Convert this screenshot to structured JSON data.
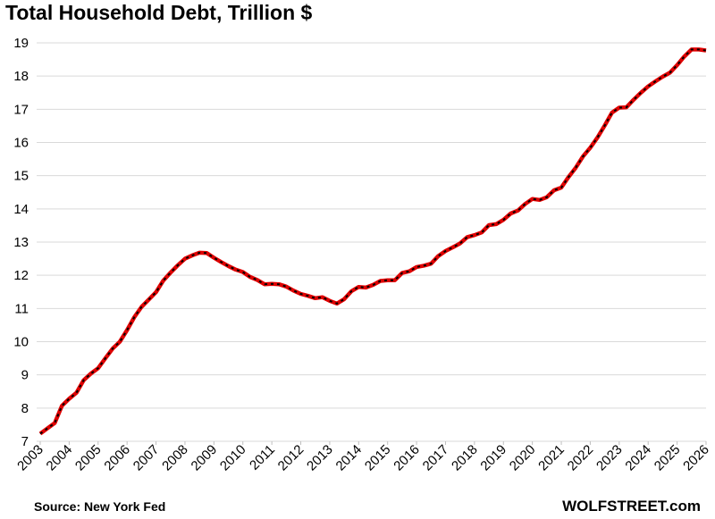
{
  "chart_data": {
    "type": "line",
    "title": "Total Household Debt, Trillion $",
    "source": "Source: New York Fed",
    "brand": "WOLFSTREET.com",
    "color": "#e00000",
    "dash_color": "#000000",
    "grid": true,
    "xlim": [
      2003,
      2026
    ],
    "xticks": [
      2003,
      2004,
      2005,
      2006,
      2007,
      2008,
      2009,
      2010,
      2011,
      2012,
      2013,
      2014,
      2015,
      2016,
      2017,
      2018,
      2019,
      2020,
      2021,
      2022,
      2023,
      2024,
      2025,
      2026
    ],
    "ylim": [
      7,
      19
    ],
    "yticks": [
      7,
      8,
      9,
      10,
      11,
      12,
      13,
      14,
      15,
      16,
      17,
      18,
      19
    ],
    "x": [
      2003,
      2003.25,
      2003.5,
      2003.75,
      2004,
      2004.25,
      2004.5,
      2004.75,
      2005,
      2005.25,
      2005.5,
      2005.75,
      2006,
      2006.25,
      2006.5,
      2006.75,
      2007,
      2007.25,
      2007.5,
      2007.75,
      2008,
      2008.25,
      2008.5,
      2008.75,
      2009,
      2009.25,
      2009.5,
      2009.75,
      2010,
      2010.25,
      2010.5,
      2010.75,
      2011,
      2011.25,
      2011.5,
      2011.75,
      2012,
      2012.25,
      2012.5,
      2012.75,
      2013,
      2013.25,
      2013.5,
      2013.75,
      2014,
      2014.25,
      2014.5,
      2014.75,
      2015,
      2015.25,
      2015.5,
      2015.75,
      2016,
      2016.25,
      2016.5,
      2016.75,
      2017,
      2017.25,
      2017.5,
      2017.75,
      2018,
      2018.25,
      2018.5,
      2018.75,
      2019,
      2019.25,
      2019.5,
      2019.75,
      2020,
      2020.25,
      2020.5,
      2020.75,
      2021,
      2021.25,
      2021.5,
      2021.75,
      2022,
      2022.25,
      2022.5,
      2022.75,
      2023,
      2023.25,
      2023.5,
      2023.75,
      2024,
      2024.25,
      2024.5,
      2024.75,
      2025,
      2025.25,
      2025.5,
      2025.75,
      2026
    ],
    "values": [
      7.23,
      7.39,
      7.55,
      8.07,
      8.28,
      8.46,
      8.84,
      9.04,
      9.2,
      9.5,
      9.79,
      10.0,
      10.35,
      10.74,
      11.05,
      11.27,
      11.49,
      11.84,
      12.08,
      12.3,
      12.5,
      12.6,
      12.68,
      12.67,
      12.53,
      12.4,
      12.28,
      12.17,
      12.1,
      11.95,
      11.86,
      11.73,
      11.74,
      11.73,
      11.66,
      11.54,
      11.44,
      11.38,
      11.31,
      11.34,
      11.23,
      11.15,
      11.28,
      11.52,
      11.65,
      11.63,
      11.71,
      11.83,
      11.85,
      11.85,
      12.07,
      12.12,
      12.25,
      12.29,
      12.35,
      12.58,
      12.73,
      12.84,
      12.96,
      13.15,
      13.21,
      13.29,
      13.51,
      13.54,
      13.67,
      13.86,
      13.95,
      14.15,
      14.3,
      14.27,
      14.35,
      14.56,
      14.64,
      14.96,
      15.24,
      15.58,
      15.84,
      16.15,
      16.51,
      16.9,
      17.05,
      17.06,
      17.29,
      17.5,
      17.69,
      17.84,
      17.98,
      18.1,
      18.33,
      18.59,
      18.8,
      18.8,
      18.77
    ]
  }
}
